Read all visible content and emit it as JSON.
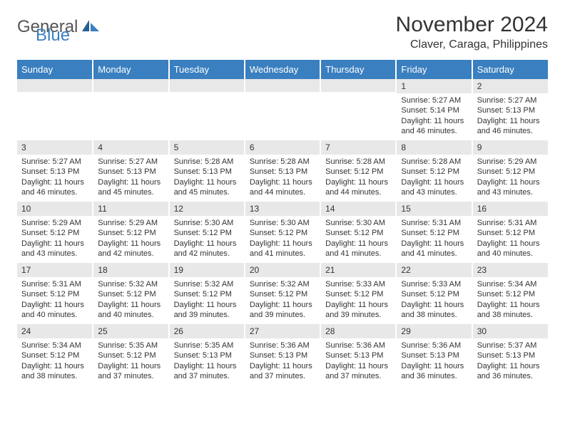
{
  "logo": {
    "part1": "General",
    "part2": "Blue"
  },
  "title": "November 2024",
  "location": "Claver, Caraga, Philippines",
  "colors": {
    "header_bg": "#3a7fbf",
    "header_text": "#ffffff",
    "daynum_bg": "#e8e8e8",
    "body_text": "#333333",
    "logo_gray": "#555555",
    "logo_blue": "#3a7fbf"
  },
  "weekdays": [
    "Sunday",
    "Monday",
    "Tuesday",
    "Wednesday",
    "Thursday",
    "Friday",
    "Saturday"
  ],
  "weeks": [
    [
      {
        "day": "",
        "sunrise": "",
        "sunset": "",
        "daylight": ""
      },
      {
        "day": "",
        "sunrise": "",
        "sunset": "",
        "daylight": ""
      },
      {
        "day": "",
        "sunrise": "",
        "sunset": "",
        "daylight": ""
      },
      {
        "day": "",
        "sunrise": "",
        "sunset": "",
        "daylight": ""
      },
      {
        "day": "",
        "sunrise": "",
        "sunset": "",
        "daylight": ""
      },
      {
        "day": "1",
        "sunrise": "Sunrise: 5:27 AM",
        "sunset": "Sunset: 5:14 PM",
        "daylight": "Daylight: 11 hours and 46 minutes."
      },
      {
        "day": "2",
        "sunrise": "Sunrise: 5:27 AM",
        "sunset": "Sunset: 5:13 PM",
        "daylight": "Daylight: 11 hours and 46 minutes."
      }
    ],
    [
      {
        "day": "3",
        "sunrise": "Sunrise: 5:27 AM",
        "sunset": "Sunset: 5:13 PM",
        "daylight": "Daylight: 11 hours and 46 minutes."
      },
      {
        "day": "4",
        "sunrise": "Sunrise: 5:27 AM",
        "sunset": "Sunset: 5:13 PM",
        "daylight": "Daylight: 11 hours and 45 minutes."
      },
      {
        "day": "5",
        "sunrise": "Sunrise: 5:28 AM",
        "sunset": "Sunset: 5:13 PM",
        "daylight": "Daylight: 11 hours and 45 minutes."
      },
      {
        "day": "6",
        "sunrise": "Sunrise: 5:28 AM",
        "sunset": "Sunset: 5:13 PM",
        "daylight": "Daylight: 11 hours and 44 minutes."
      },
      {
        "day": "7",
        "sunrise": "Sunrise: 5:28 AM",
        "sunset": "Sunset: 5:12 PM",
        "daylight": "Daylight: 11 hours and 44 minutes."
      },
      {
        "day": "8",
        "sunrise": "Sunrise: 5:28 AM",
        "sunset": "Sunset: 5:12 PM",
        "daylight": "Daylight: 11 hours and 43 minutes."
      },
      {
        "day": "9",
        "sunrise": "Sunrise: 5:29 AM",
        "sunset": "Sunset: 5:12 PM",
        "daylight": "Daylight: 11 hours and 43 minutes."
      }
    ],
    [
      {
        "day": "10",
        "sunrise": "Sunrise: 5:29 AM",
        "sunset": "Sunset: 5:12 PM",
        "daylight": "Daylight: 11 hours and 43 minutes."
      },
      {
        "day": "11",
        "sunrise": "Sunrise: 5:29 AM",
        "sunset": "Sunset: 5:12 PM",
        "daylight": "Daylight: 11 hours and 42 minutes."
      },
      {
        "day": "12",
        "sunrise": "Sunrise: 5:30 AM",
        "sunset": "Sunset: 5:12 PM",
        "daylight": "Daylight: 11 hours and 42 minutes."
      },
      {
        "day": "13",
        "sunrise": "Sunrise: 5:30 AM",
        "sunset": "Sunset: 5:12 PM",
        "daylight": "Daylight: 11 hours and 41 minutes."
      },
      {
        "day": "14",
        "sunrise": "Sunrise: 5:30 AM",
        "sunset": "Sunset: 5:12 PM",
        "daylight": "Daylight: 11 hours and 41 minutes."
      },
      {
        "day": "15",
        "sunrise": "Sunrise: 5:31 AM",
        "sunset": "Sunset: 5:12 PM",
        "daylight": "Daylight: 11 hours and 41 minutes."
      },
      {
        "day": "16",
        "sunrise": "Sunrise: 5:31 AM",
        "sunset": "Sunset: 5:12 PM",
        "daylight": "Daylight: 11 hours and 40 minutes."
      }
    ],
    [
      {
        "day": "17",
        "sunrise": "Sunrise: 5:31 AM",
        "sunset": "Sunset: 5:12 PM",
        "daylight": "Daylight: 11 hours and 40 minutes."
      },
      {
        "day": "18",
        "sunrise": "Sunrise: 5:32 AM",
        "sunset": "Sunset: 5:12 PM",
        "daylight": "Daylight: 11 hours and 40 minutes."
      },
      {
        "day": "19",
        "sunrise": "Sunrise: 5:32 AM",
        "sunset": "Sunset: 5:12 PM",
        "daylight": "Daylight: 11 hours and 39 minutes."
      },
      {
        "day": "20",
        "sunrise": "Sunrise: 5:32 AM",
        "sunset": "Sunset: 5:12 PM",
        "daylight": "Daylight: 11 hours and 39 minutes."
      },
      {
        "day": "21",
        "sunrise": "Sunrise: 5:33 AM",
        "sunset": "Sunset: 5:12 PM",
        "daylight": "Daylight: 11 hours and 39 minutes."
      },
      {
        "day": "22",
        "sunrise": "Sunrise: 5:33 AM",
        "sunset": "Sunset: 5:12 PM",
        "daylight": "Daylight: 11 hours and 38 minutes."
      },
      {
        "day": "23",
        "sunrise": "Sunrise: 5:34 AM",
        "sunset": "Sunset: 5:12 PM",
        "daylight": "Daylight: 11 hours and 38 minutes."
      }
    ],
    [
      {
        "day": "24",
        "sunrise": "Sunrise: 5:34 AM",
        "sunset": "Sunset: 5:12 PM",
        "daylight": "Daylight: 11 hours and 38 minutes."
      },
      {
        "day": "25",
        "sunrise": "Sunrise: 5:35 AM",
        "sunset": "Sunset: 5:12 PM",
        "daylight": "Daylight: 11 hours and 37 minutes."
      },
      {
        "day": "26",
        "sunrise": "Sunrise: 5:35 AM",
        "sunset": "Sunset: 5:13 PM",
        "daylight": "Daylight: 11 hours and 37 minutes."
      },
      {
        "day": "27",
        "sunrise": "Sunrise: 5:36 AM",
        "sunset": "Sunset: 5:13 PM",
        "daylight": "Daylight: 11 hours and 37 minutes."
      },
      {
        "day": "28",
        "sunrise": "Sunrise: 5:36 AM",
        "sunset": "Sunset: 5:13 PM",
        "daylight": "Daylight: 11 hours and 37 minutes."
      },
      {
        "day": "29",
        "sunrise": "Sunrise: 5:36 AM",
        "sunset": "Sunset: 5:13 PM",
        "daylight": "Daylight: 11 hours and 36 minutes."
      },
      {
        "day": "30",
        "sunrise": "Sunrise: 5:37 AM",
        "sunset": "Sunset: 5:13 PM",
        "daylight": "Daylight: 11 hours and 36 minutes."
      }
    ]
  ]
}
